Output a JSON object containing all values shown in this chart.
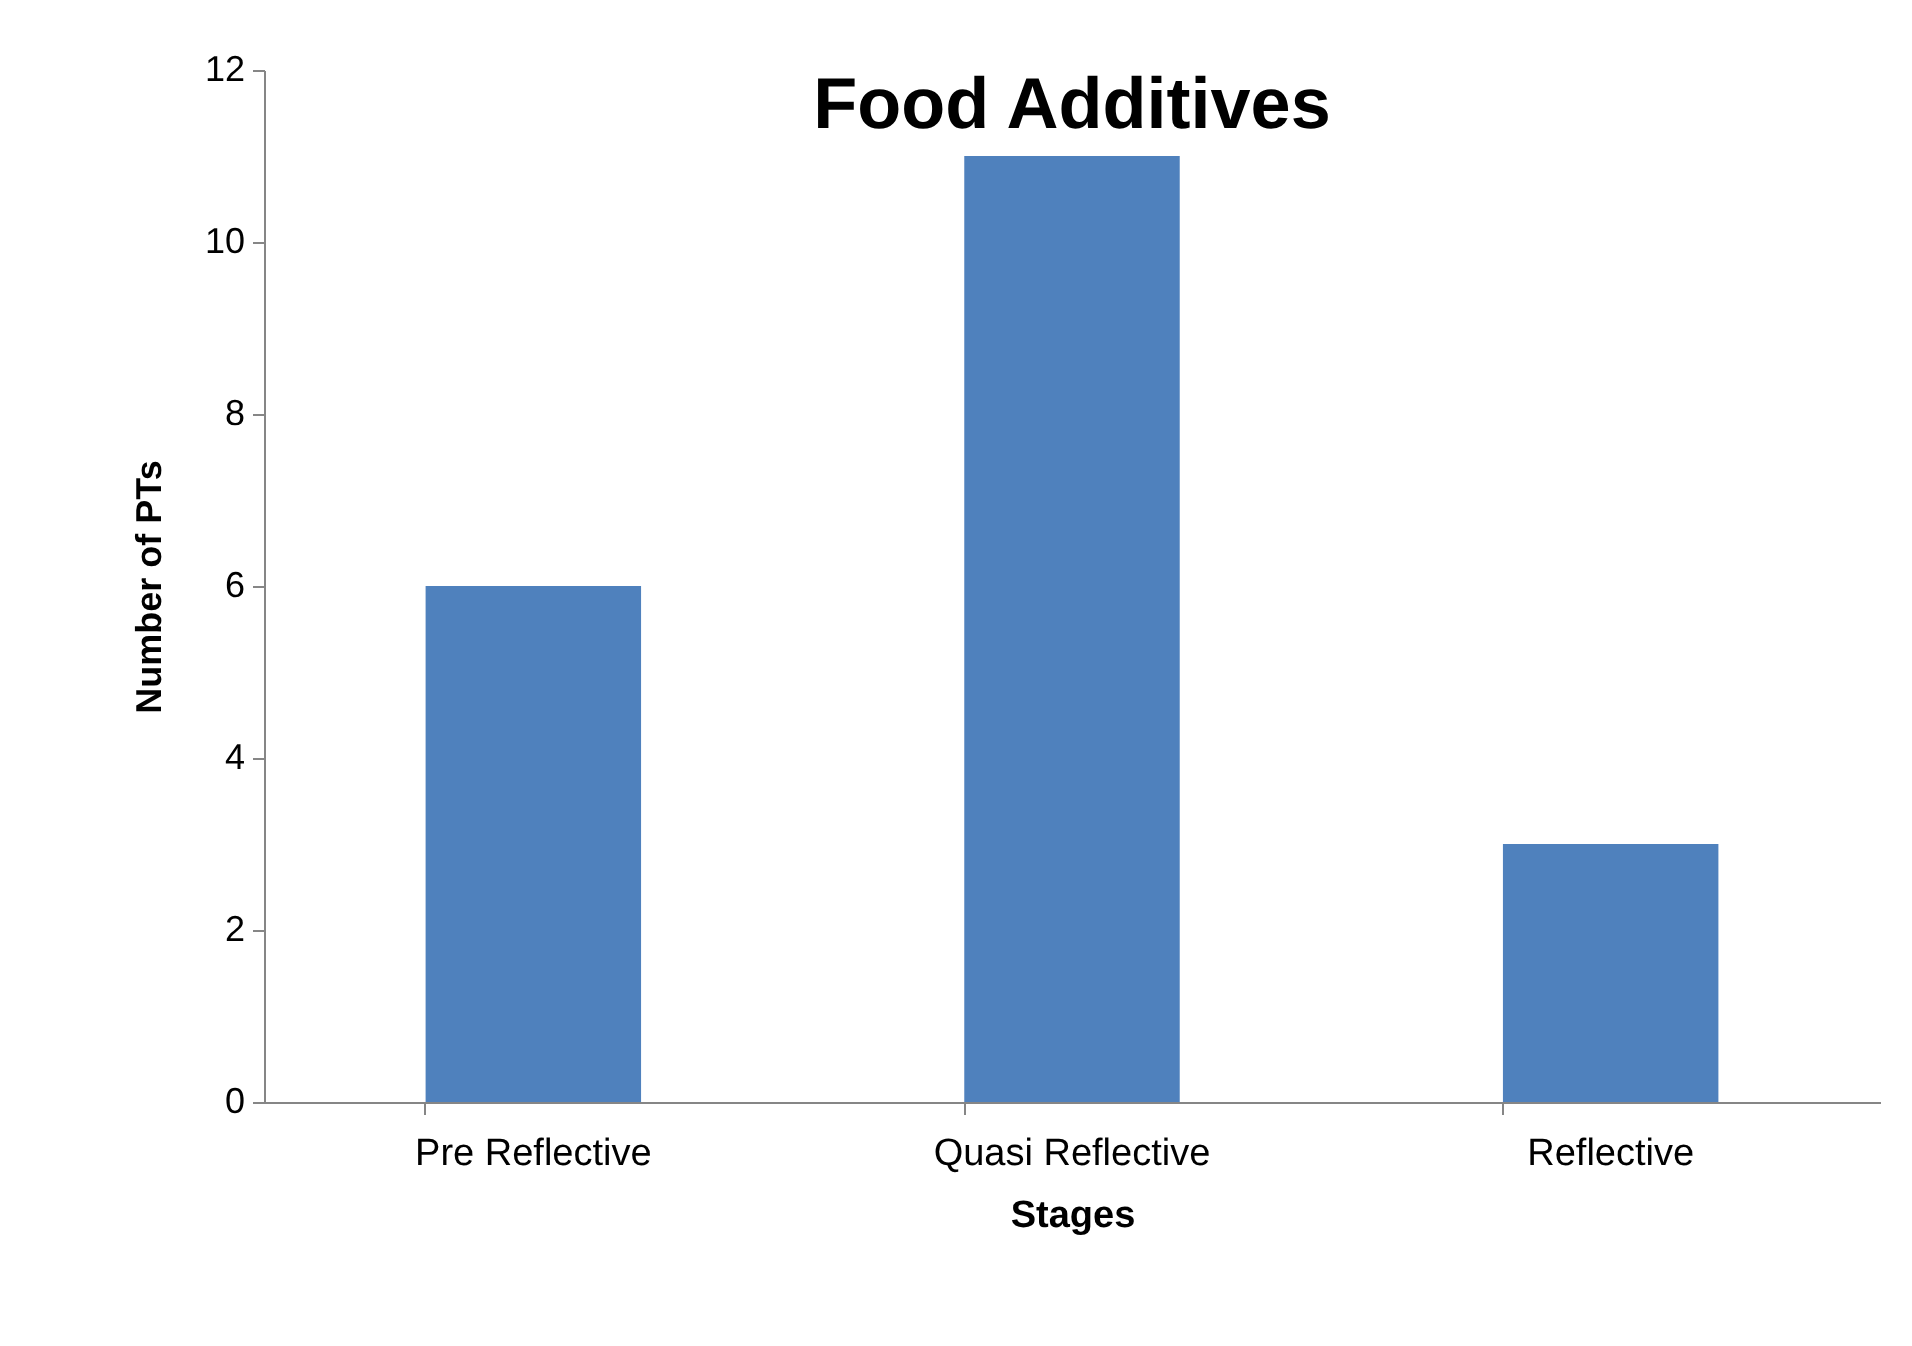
{
  "chart_data": {
    "type": "bar",
    "title": "Food Additives",
    "xlabel": "Stages",
    "ylabel": "Number  of PTs",
    "categories": [
      "Pre Reflective",
      "Quasi Reflective",
      "Reflective"
    ],
    "values": [
      6,
      11,
      3
    ],
    "color": "#4f81bd",
    "ylim": [
      0,
      12
    ],
    "yticks": [
      0,
      2,
      4,
      6,
      8,
      10,
      12
    ]
  }
}
